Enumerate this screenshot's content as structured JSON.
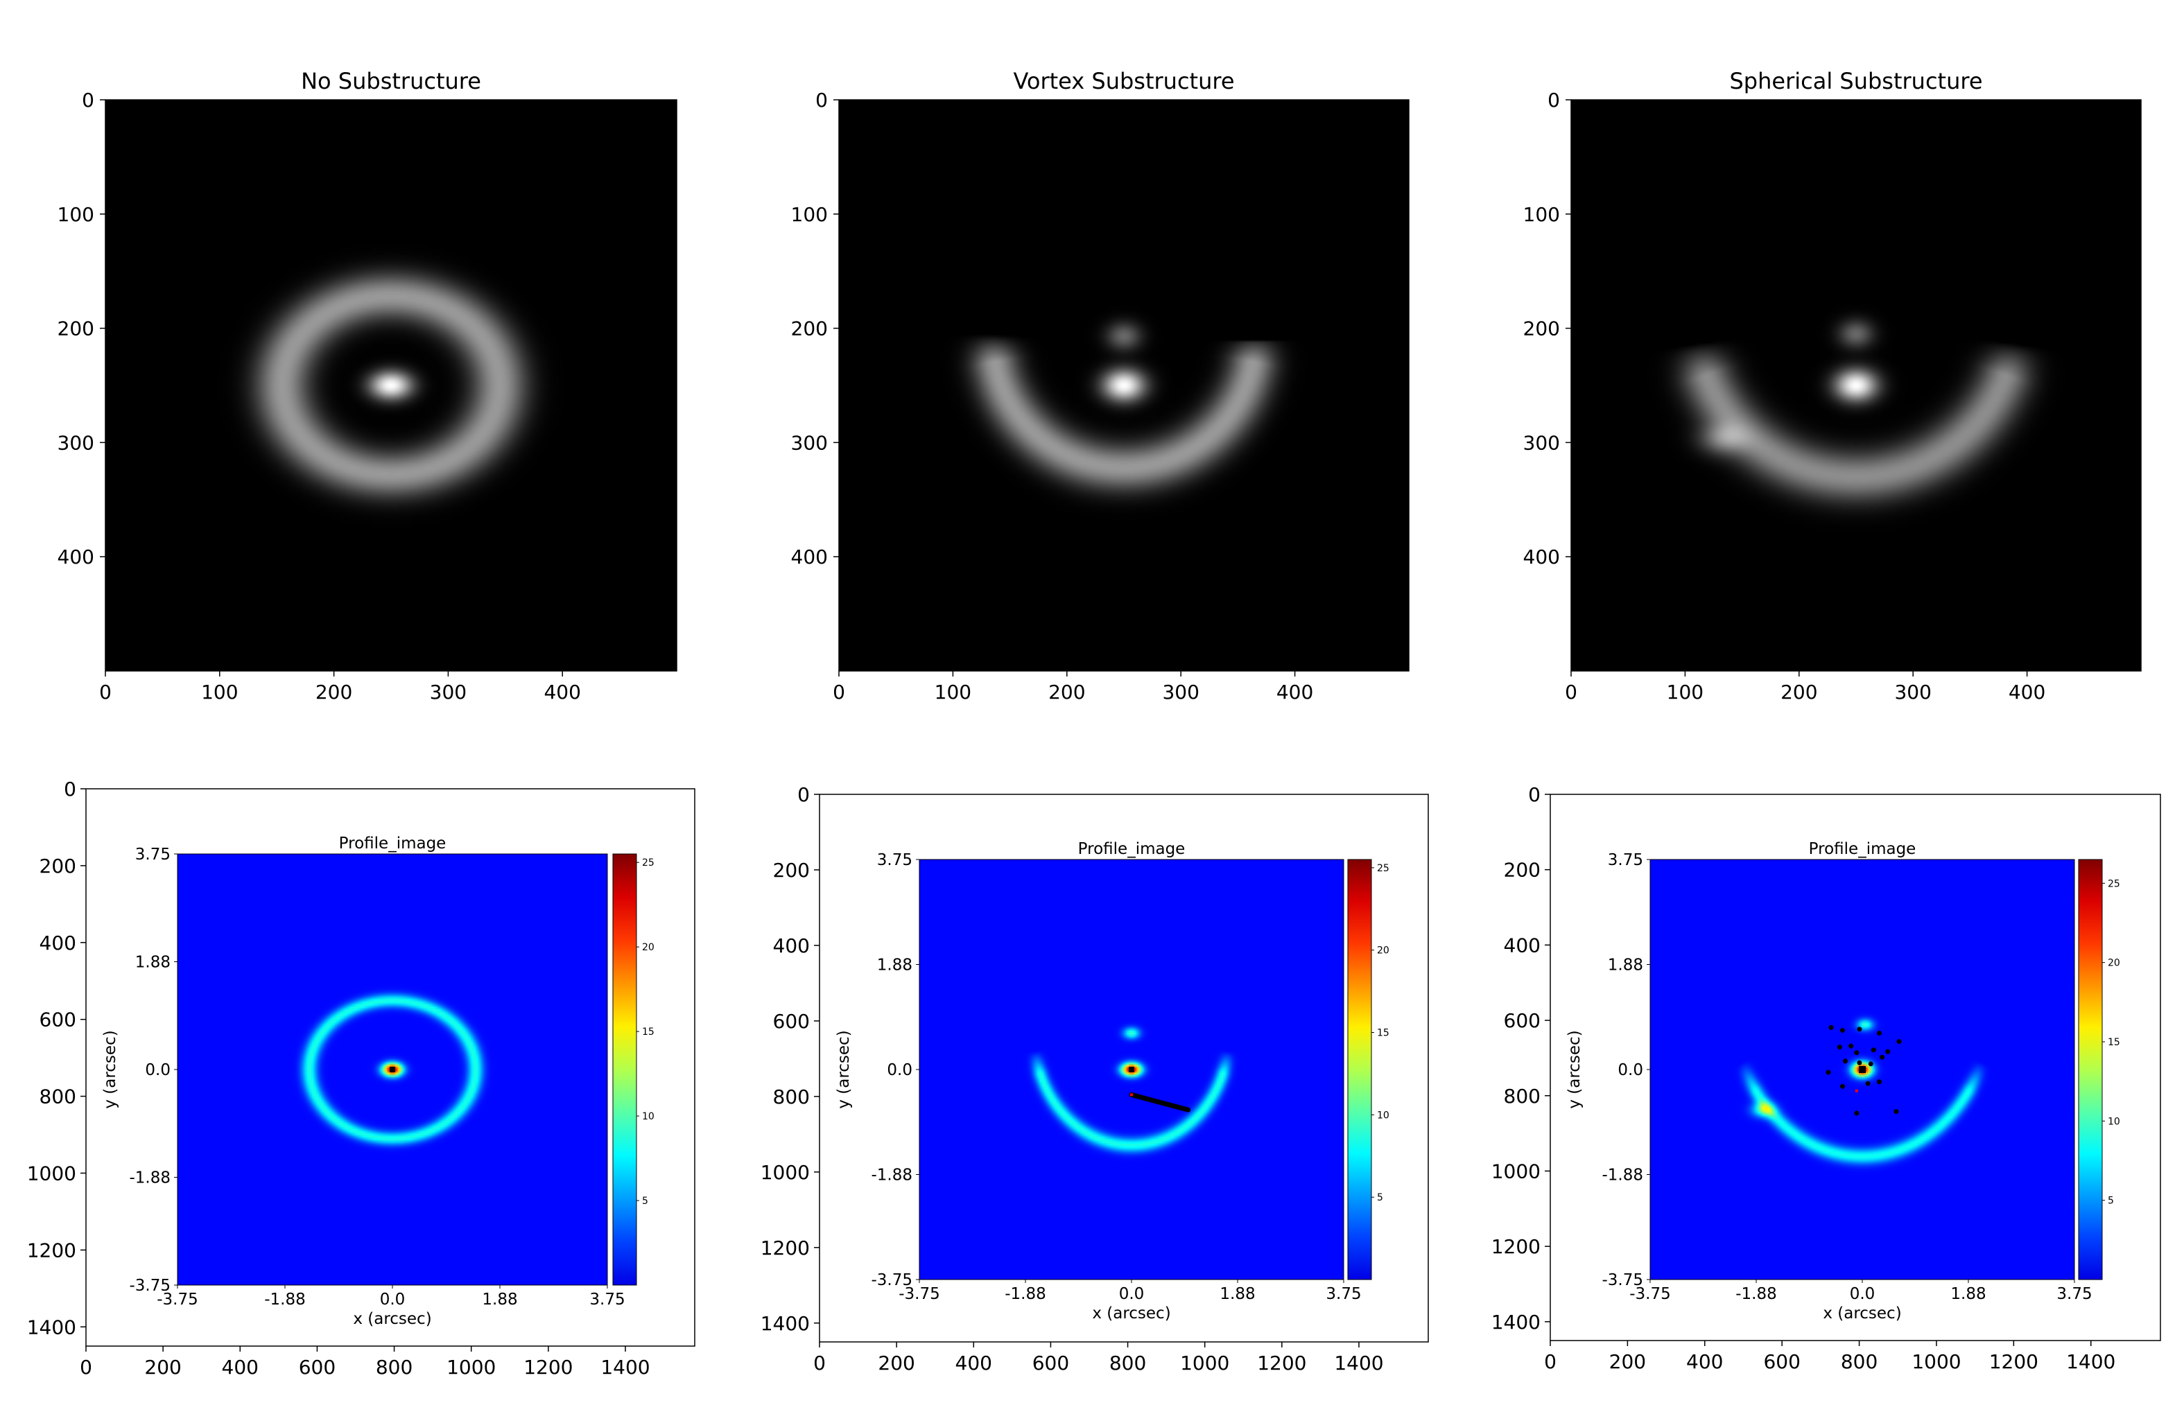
{
  "chart_data": [
    {
      "type": "heatmap",
      "title": "No Substructure",
      "colormap": "gray",
      "xlim": [
        0,
        500
      ],
      "ylim": [
        500,
        0
      ],
      "xticks": [
        0,
        100,
        200,
        300,
        400
      ],
      "yticks": [
        0,
        100,
        200,
        300,
        400
      ],
      "features": [
        {
          "kind": "gaussian",
          "x": 250,
          "y": 250,
          "sx": 12,
          "sy": 8,
          "amp": 1.0
        },
        {
          "kind": "ring",
          "cx": 250,
          "cy": 250,
          "rx": 95,
          "ry": 78,
          "width": 13,
          "amp": 0.55,
          "brightness_at": [
            {
              "angle": 180,
              "amp": 0.65
            },
            {
              "angle": 90,
              "amp": 0.6
            }
          ]
        }
      ]
    },
    {
      "type": "heatmap",
      "title": "Vortex Substructure",
      "colormap": "gray",
      "xlim": [
        0,
        500
      ],
      "ylim": [
        500,
        0
      ],
      "xticks": [
        0,
        100,
        200,
        300,
        400
      ],
      "yticks": [
        0,
        100,
        200,
        300,
        400
      ],
      "features": [
        {
          "kind": "gaussian",
          "x": 250,
          "y": 250,
          "sx": 12,
          "sy": 9,
          "amp": 1.0
        },
        {
          "kind": "gaussian",
          "x": 250,
          "y": 207,
          "sx": 10,
          "sy": 8,
          "amp": 0.35
        },
        {
          "kind": "arc",
          "cx": 250,
          "cy": 210,
          "rx": 115,
          "ry": 112,
          "from": 10,
          "to": 170,
          "width": 13,
          "amp": 0.55
        }
      ]
    },
    {
      "type": "heatmap",
      "title": "Spherical Substructure",
      "colormap": "gray",
      "xlim": [
        0,
        500
      ],
      "ylim": [
        500,
        0
      ],
      "xticks": [
        0,
        100,
        200,
        300,
        400
      ],
      "yticks": [
        0,
        100,
        200,
        300,
        400
      ],
      "features": [
        {
          "kind": "gaussian",
          "x": 250,
          "y": 250,
          "sx": 12,
          "sy": 9,
          "amp": 1.0
        },
        {
          "kind": "gaussian",
          "x": 250,
          "y": 205,
          "sx": 10,
          "sy": 8,
          "amp": 0.35
        },
        {
          "kind": "arc",
          "cx": 250,
          "cy": 195,
          "rx": 140,
          "ry": 135,
          "from": 20,
          "to": 160,
          "width": 14,
          "amp": 0.5
        },
        {
          "kind": "gaussian",
          "x": 133,
          "y": 297,
          "sx": 14,
          "sy": 9,
          "amp": 0.35
        }
      ]
    },
    {
      "type": "heatmap",
      "title": "Profile_image",
      "colormap": "jet",
      "colorbar": {
        "range": [
          0,
          25.5
        ],
        "ticks": [
          "5",
          "10",
          "15",
          "20",
          "25"
        ]
      },
      "inner_xlabel": "x (arcsec)",
      "inner_ylabel": "y (arcsec)",
      "inner_xticks": [
        "-3.75",
        "-1.88",
        "0.0",
        "1.88",
        "3.75"
      ],
      "inner_yticks": [
        "3.75",
        "1.88",
        "0.0",
        "-1.88",
        "-3.75"
      ],
      "outer_xlim": [
        0,
        1580
      ],
      "outer_ylim": [
        1450,
        0
      ],
      "outer_xticks": [
        0,
        200,
        400,
        600,
        800,
        1000,
        1200,
        1400
      ],
      "outer_yticks": [
        0,
        200,
        400,
        600,
        800,
        1000,
        1200,
        1400
      ],
      "features": [
        {
          "kind": "gaussian",
          "x": 0.0,
          "y": 0.0,
          "sx": 0.12,
          "sy": 0.08,
          "amp": 25
        },
        {
          "kind": "ring",
          "cx": 0.0,
          "cy": 0.0,
          "rx": 1.45,
          "ry": 1.2,
          "width": 0.08,
          "amp": 8
        },
        {
          "kind": "marker",
          "x": 0.0,
          "y": 0.0,
          "color": "#000000",
          "size": 4
        }
      ]
    },
    {
      "type": "heatmap",
      "title": "Profile_image",
      "colormap": "jet",
      "colorbar": {
        "range": [
          0,
          25.5
        ],
        "ticks": [
          "5",
          "10",
          "15",
          "20",
          "25"
        ]
      },
      "inner_xlabel": "x (arcsec)",
      "inner_ylabel": "y (arcsec)",
      "inner_xticks": [
        "-3.75",
        "-1.88",
        "0.0",
        "1.88",
        "3.75"
      ],
      "inner_yticks": [
        "3.75",
        "1.88",
        "0.0",
        "-1.88",
        "-3.75"
      ],
      "outer_xlim": [
        0,
        1580
      ],
      "outer_ylim": [
        1450,
        0
      ],
      "outer_xticks": [
        0,
        200,
        400,
        600,
        800,
        1000,
        1200,
        1400
      ],
      "outer_yticks": [
        0,
        200,
        400,
        600,
        800,
        1000,
        1200,
        1400
      ],
      "features": [
        {
          "kind": "gaussian",
          "x": 0.0,
          "y": 0.0,
          "sx": 0.12,
          "sy": 0.08,
          "amp": 25
        },
        {
          "kind": "gaussian",
          "x": 0.0,
          "y": 0.65,
          "sx": 0.1,
          "sy": 0.07,
          "amp": 9
        },
        {
          "kind": "arc",
          "cx": 0.0,
          "cy": 0.6,
          "rx": 1.72,
          "ry": 1.95,
          "from": 200,
          "to": 340,
          "width": 0.08,
          "amp": 8
        },
        {
          "kind": "marker",
          "x": 0.0,
          "y": 0.0,
          "color": "#000000",
          "size": 4
        },
        {
          "kind": "line",
          "x1": 0.0,
          "y1": -0.45,
          "x2": 1.0,
          "y2": -0.72,
          "color": "#000000"
        },
        {
          "kind": "marker",
          "x": 0.0,
          "y": -0.45,
          "color": "#ff0000",
          "size": 2
        }
      ]
    },
    {
      "type": "heatmap",
      "title": "Profile_image",
      "colormap": "jet",
      "colorbar": {
        "range": [
          0,
          26.5
        ],
        "ticks": [
          "5",
          "10",
          "15",
          "20",
          "25"
        ]
      },
      "inner_xlabel": "x (arcsec)",
      "inner_ylabel": "y (arcsec)",
      "inner_xticks": [
        "-3.75",
        "-1.88",
        "0.0",
        "1.88",
        "3.75"
      ],
      "inner_yticks": [
        "3.75",
        "1.88",
        "0.0",
        "-1.88",
        "-3.75"
      ],
      "outer_xlim": [
        0,
        1580
      ],
      "outer_ylim": [
        1450,
        0
      ],
      "outer_xticks": [
        0,
        200,
        400,
        600,
        800,
        1000,
        1200,
        1400
      ],
      "outer_yticks": [
        0,
        200,
        400,
        600,
        800,
        1000,
        1200,
        1400
      ],
      "features": [
        {
          "kind": "gaussian",
          "x": 0.0,
          "y": 0.0,
          "sx": 0.12,
          "sy": 0.09,
          "amp": 26
        },
        {
          "kind": "gaussian",
          "x": 0.05,
          "y": 0.8,
          "sx": 0.1,
          "sy": 0.07,
          "amp": 9
        },
        {
          "kind": "arc",
          "cx": 0.0,
          "cy": 1.2,
          "rx": 2.3,
          "ry": 2.75,
          "from": 215,
          "to": 325,
          "width": 0.08,
          "amp": 8
        },
        {
          "kind": "gaussian",
          "x": -1.75,
          "y": -0.72,
          "sx": 0.14,
          "sy": 0.09,
          "amp": 9
        },
        {
          "kind": "marker",
          "x": 0.0,
          "y": 0.0,
          "color": "#000000",
          "size": 5
        },
        {
          "kind": "scatter",
          "color": "#000000",
          "points": [
            [
              -0.55,
              0.75
            ],
            [
              -0.35,
              0.7
            ],
            [
              -0.05,
              0.72
            ],
            [
              0.3,
              0.65
            ],
            [
              0.65,
              0.5
            ],
            [
              -0.4,
              0.4
            ],
            [
              -0.2,
              0.42
            ],
            [
              -0.1,
              0.3
            ],
            [
              0.2,
              0.35
            ],
            [
              0.45,
              0.32
            ],
            [
              0.35,
              0.22
            ],
            [
              -0.3,
              0.15
            ],
            [
              -0.05,
              0.12
            ],
            [
              0.15,
              0.1
            ],
            [
              -0.6,
              -0.05
            ],
            [
              -0.35,
              -0.3
            ],
            [
              0.1,
              -0.25
            ],
            [
              0.3,
              -0.22
            ],
            [
              -0.1,
              -0.78
            ],
            [
              0.6,
              -0.75
            ]
          ]
        },
        {
          "kind": "marker",
          "x": -0.1,
          "y": -0.38,
          "color": "#ff0000",
          "size": 2
        }
      ]
    }
  ]
}
